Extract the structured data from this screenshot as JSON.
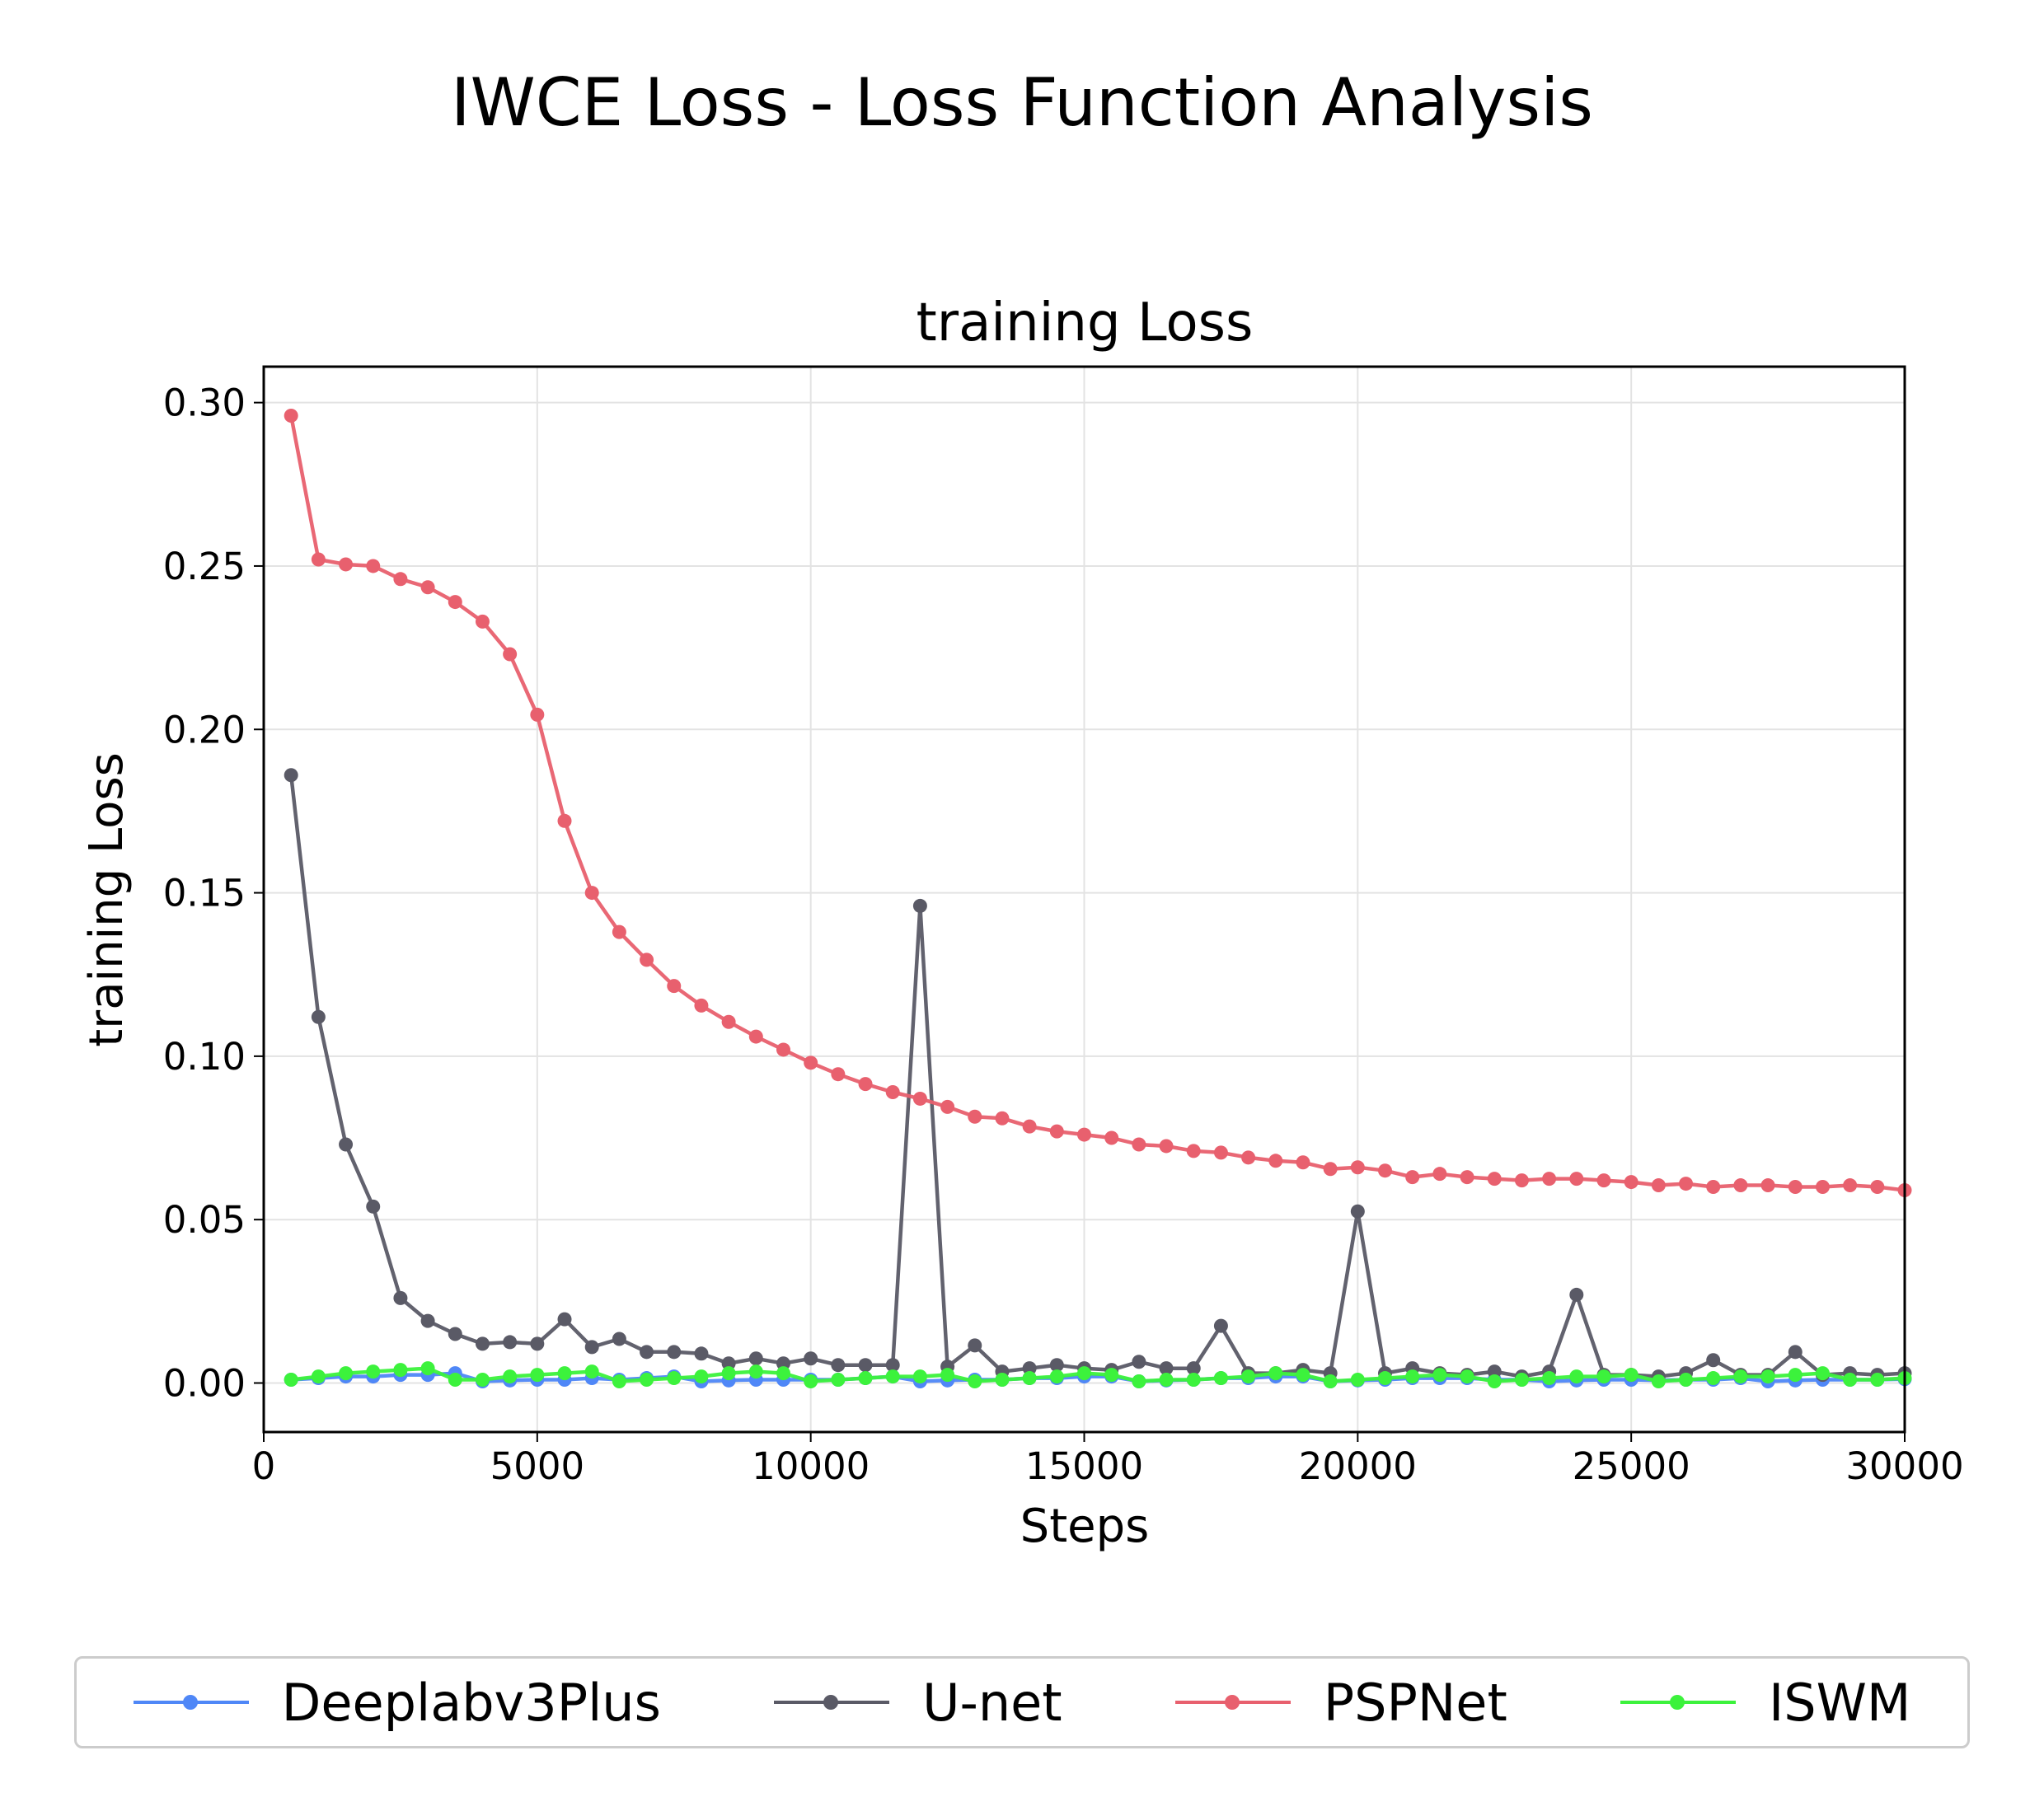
{
  "figure_title": "IWCE Loss - Loss Function Analysis",
  "chart_data": {
    "type": "line",
    "title": "training Loss",
    "xlabel": "Steps",
    "ylabel": "training Loss",
    "xlim": [
      0,
      30000
    ],
    "ylim": [
      -0.015,
      0.311
    ],
    "xticks": [
      0,
      5000,
      10000,
      15000,
      20000,
      25000,
      30000
    ],
    "yticks": [
      0.0,
      0.05,
      0.1,
      0.15,
      0.2,
      0.25,
      0.3
    ],
    "xtick_labels": [
      "0",
      "5000",
      "10000",
      "15000",
      "20000",
      "25000",
      "30000"
    ],
    "ytick_labels": [
      "0.00",
      "0.05",
      "0.10",
      "0.15",
      "0.20",
      "0.25",
      "0.30"
    ],
    "grid": true,
    "legend_position": "bottom",
    "x": [
      500,
      1000,
      1500,
      2000,
      2500,
      3000,
      3500,
      4000,
      4500,
      5000,
      5500,
      6000,
      6500,
      7000,
      7500,
      8000,
      8500,
      9000,
      9500,
      10000,
      10500,
      11000,
      11500,
      12000,
      12500,
      13000,
      13500,
      14000,
      14500,
      15000,
      15500,
      16000,
      16500,
      17000,
      17500,
      18000,
      18500,
      19000,
      19500,
      20000,
      20500,
      21000,
      21500,
      22000,
      22500,
      23000,
      23500,
      24000,
      24500,
      25000,
      25500,
      26000,
      26500,
      27000,
      27500,
      28000,
      28500,
      29000,
      29500,
      30000
    ],
    "series": [
      {
        "name": "Deeplabv3Plus",
        "color": "#4f87f7",
        "values": [
          0.001,
          0.0015,
          0.002,
          0.002,
          0.0025,
          0.0025,
          0.003,
          0.0005,
          0.0008,
          0.001,
          0.001,
          0.0015,
          0.001,
          0.0015,
          0.002,
          0.0005,
          0.0008,
          0.001,
          0.001,
          0.001,
          0.001,
          0.0015,
          0.002,
          0.0005,
          0.0008,
          0.001,
          0.001,
          0.0015,
          0.0015,
          0.002,
          0.002,
          0.0005,
          0.0008,
          0.001,
          0.0015,
          0.0015,
          0.002,
          0.002,
          0.0005,
          0.0008,
          0.001,
          0.0015,
          0.0015,
          0.0015,
          0.001,
          0.001,
          0.0005,
          0.0008,
          0.001,
          0.001,
          0.0008,
          0.001,
          0.001,
          0.0015,
          0.0005,
          0.0008,
          0.001,
          0.001,
          0.001,
          0.0012
        ]
      },
      {
        "name": "U-net",
        "color": "#5a5a66",
        "values": [
          0.186,
          0.112,
          0.073,
          0.054,
          0.026,
          0.019,
          0.015,
          0.012,
          0.0125,
          0.012,
          0.0195,
          0.011,
          0.0135,
          0.0095,
          0.0095,
          0.009,
          0.006,
          0.0075,
          0.006,
          0.0075,
          0.0055,
          0.0055,
          0.0055,
          0.146,
          0.005,
          0.0115,
          0.0035,
          0.0045,
          0.0055,
          0.0045,
          0.004,
          0.0065,
          0.0045,
          0.0045,
          0.0175,
          0.003,
          0.003,
          0.004,
          0.003,
          0.0525,
          0.003,
          0.0045,
          0.003,
          0.0025,
          0.0035,
          0.002,
          0.0035,
          0.027,
          0.0025,
          0.0025,
          0.002,
          0.003,
          0.007,
          0.0025,
          0.0025,
          0.0095,
          0.0025,
          0.003,
          0.0025,
          0.003
        ]
      },
      {
        "name": "PSPNet",
        "color": "#e8606e",
        "values": [
          0.296,
          0.252,
          0.2505,
          0.25,
          0.246,
          0.2435,
          0.239,
          0.233,
          0.223,
          0.2045,
          0.172,
          0.15,
          0.138,
          0.1295,
          0.1215,
          0.1155,
          0.1105,
          0.106,
          0.102,
          0.098,
          0.0945,
          0.0915,
          0.089,
          0.087,
          0.0845,
          0.0815,
          0.081,
          0.0785,
          0.077,
          0.076,
          0.075,
          0.073,
          0.0725,
          0.071,
          0.0705,
          0.069,
          0.068,
          0.0675,
          0.0655,
          0.066,
          0.065,
          0.063,
          0.064,
          0.063,
          0.0625,
          0.062,
          0.0625,
          0.0625,
          0.062,
          0.0615,
          0.0605,
          0.061,
          0.06,
          0.0605,
          0.0605,
          0.06,
          0.06,
          0.0605,
          0.06,
          0.059
        ]
      },
      {
        "name": "ISWM",
        "color": "#3cf23c",
        "values": [
          0.001,
          0.002,
          0.003,
          0.0035,
          0.004,
          0.0045,
          0.001,
          0.001,
          0.002,
          0.0025,
          0.003,
          0.0035,
          0.0005,
          0.001,
          0.0015,
          0.002,
          0.003,
          0.0035,
          0.003,
          0.0005,
          0.001,
          0.0015,
          0.002,
          0.002,
          0.0025,
          0.0005,
          0.001,
          0.0015,
          0.002,
          0.003,
          0.0025,
          0.0005,
          0.001,
          0.001,
          0.0015,
          0.002,
          0.003,
          0.0025,
          0.0005,
          0.001,
          0.0015,
          0.002,
          0.0025,
          0.002,
          0.0005,
          0.001,
          0.0015,
          0.002,
          0.002,
          0.0025,
          0.0005,
          0.001,
          0.0015,
          0.002,
          0.002,
          0.0025,
          0.003,
          0.001,
          0.001,
          0.0015
        ]
      }
    ]
  }
}
